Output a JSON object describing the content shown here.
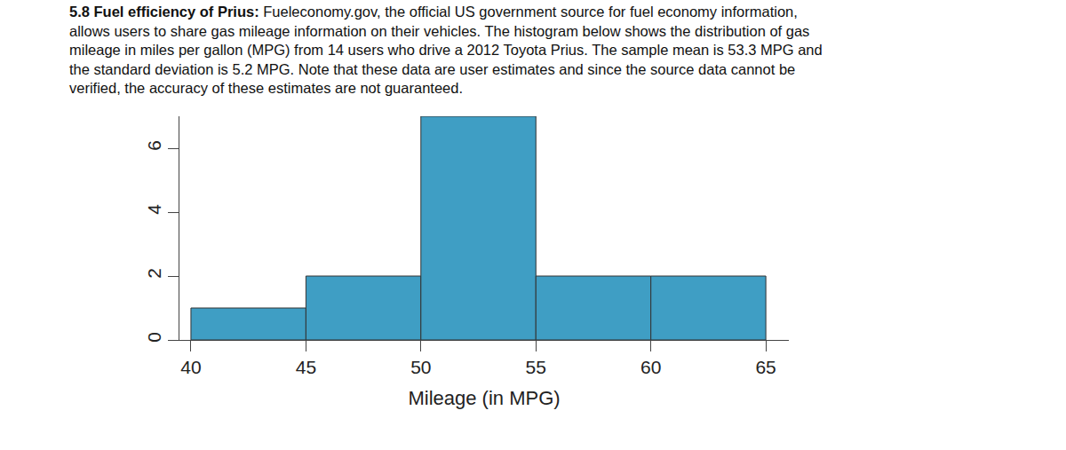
{
  "chart_data": {
    "type": "histogram",
    "title": "5.8 Fuel efficiency of Prius:",
    "subtitle": "Fueleconomy.gov, the official US government source for fuel economy information, allows users to share gas mileage information on their vehicles. The histogram below shows the distribution of gas mileage in miles per gallon (MPG) from 14 users who drive a 2012 Toyota Prius. The sample mean is 53.3 MPG and the standard deviation is 5.2 MPG. Note that these data are user estimates and since the source data cannot be verified, the accuracy of these estimates are not guaranteed.",
    "x_label": "Mileage (in MPG)",
    "bins": [
      40,
      45,
      50,
      55,
      60,
      65
    ],
    "values": [
      1,
      2,
      7,
      2,
      2
    ],
    "color": "#3f9ec4",
    "xlim": [
      39.5,
      66
    ],
    "xticks": [
      40,
      45,
      50,
      55,
      60,
      65
    ],
    "ylim": [
      0,
      7
    ],
    "yticks": [
      0,
      2,
      4,
      6
    ],
    "grid": false
  }
}
